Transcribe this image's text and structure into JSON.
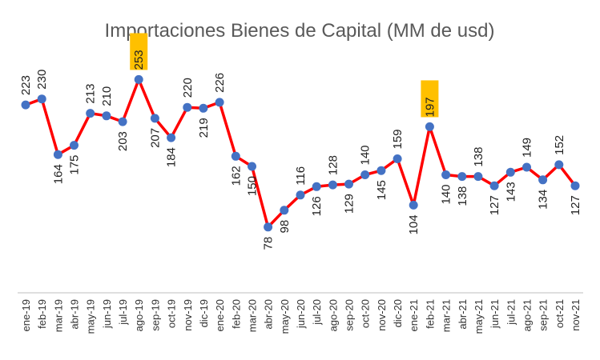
{
  "chart_data": {
    "type": "line",
    "title": "Importaciones Bienes de Capital (MM de usd)",
    "xlabel": "",
    "ylabel": "",
    "ylim": [
      0,
      280
    ],
    "grid": false,
    "legend": "none",
    "categories": [
      "ene-19",
      "feb-19",
      "mar-19",
      "abr-19",
      "may-19",
      "jun-19",
      "jul-19",
      "ago-19",
      "sep-19",
      "oct-19",
      "nov-19",
      "dic-19",
      "ene-20",
      "feb-20",
      "mar-20",
      "abr-20",
      "may-20",
      "jun-20",
      "jul-20",
      "ago-20",
      "sep-20",
      "oct-20",
      "nov-20",
      "dic-20",
      "ene-21",
      "feb-21",
      "mar-21",
      "abr-21",
      "may-21",
      "jun-21",
      "jul-21",
      "ago-21",
      "sep-21",
      "oct-21",
      "nov-21"
    ],
    "series": [
      {
        "values": [
          223,
          230,
          164,
          175,
          213,
          210,
          203,
          253,
          207,
          184,
          220,
          219,
          226,
          162,
          150,
          78,
          98,
          116,
          126,
          128,
          129,
          140,
          145,
          159,
          104,
          197,
          140,
          138,
          138,
          127,
          143,
          149,
          134,
          152,
          127
        ]
      }
    ],
    "highlighted": [
      "ago-19",
      "feb-21"
    ],
    "colors": {
      "line": "#FF0000",
      "marker": "#4472C4",
      "highlight": "#FFC000",
      "axis": "#BFBFBF",
      "title": "#595959"
    }
  }
}
